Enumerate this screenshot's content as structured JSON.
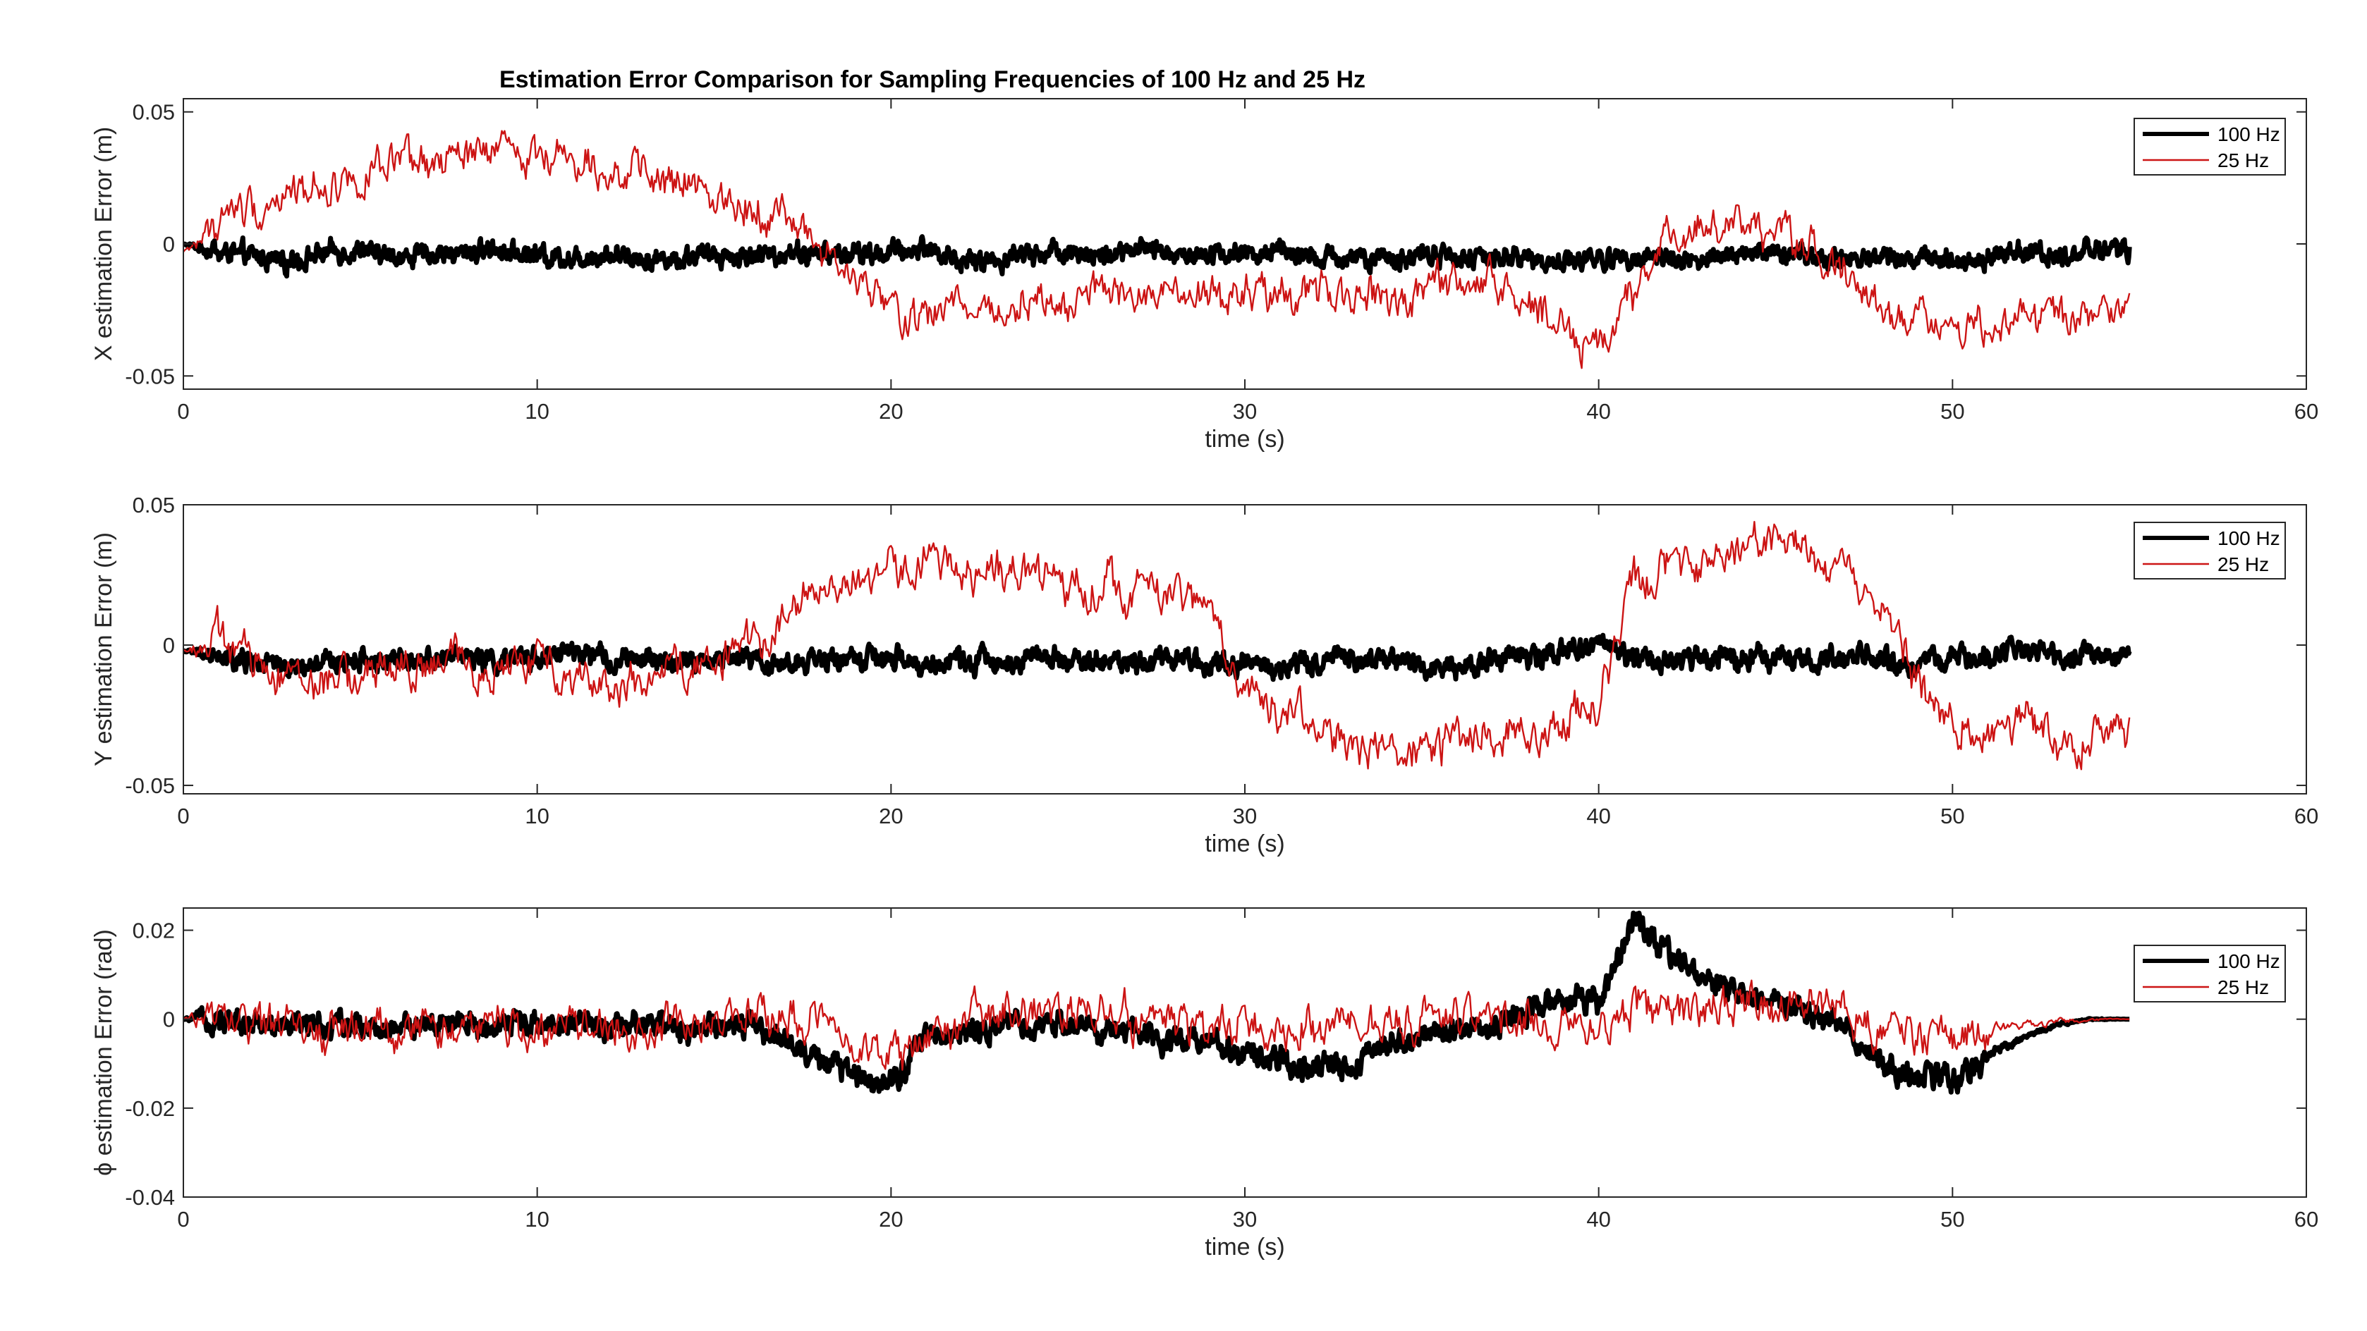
{
  "figure": {
    "title": "Estimation Error Comparison for Sampling Frequencies of 100 Hz and 25 Hz"
  },
  "colors": {
    "series_100hz": "#000000",
    "series_25hz": "#cc1414",
    "axes": "#262626",
    "background": "#ffffff"
  },
  "chart_data": [
    {
      "type": "line",
      "title": "Estimation Error Comparison for Sampling Frequencies of 100 Hz and 25 Hz",
      "xlabel": "time (s)",
      "ylabel": "X estimation Error (m)",
      "xlim": [
        0,
        60
      ],
      "ylim": [
        -0.055,
        0.055
      ],
      "xticks": [
        0,
        10,
        20,
        30,
        40,
        50,
        60
      ],
      "xtick_labels": [
        "0",
        "10",
        "20",
        "30",
        "40",
        "50",
        "60"
      ],
      "yticks": [
        -0.05,
        0,
        0.05
      ],
      "ytick_labels": [
        "-0.05",
        "0",
        "0.05"
      ],
      "grid": false,
      "legend_position": "top-right",
      "series": [
        {
          "name": "100 Hz",
          "x": [
            0,
            1,
            2,
            3,
            4,
            5,
            6,
            7,
            8,
            9,
            10,
            11,
            12,
            13,
            14,
            15,
            16,
            17,
            18,
            19,
            20,
            21,
            22,
            23,
            24,
            25,
            26,
            27,
            28,
            29,
            30,
            31,
            32,
            33,
            34,
            35,
            36,
            37,
            38,
            39,
            40,
            41,
            42,
            43,
            44,
            45,
            46,
            47,
            48,
            49,
            50,
            51,
            52,
            53,
            54,
            55
          ],
          "y": [
            0,
            -0.003,
            -0.005,
            -0.006,
            -0.004,
            -0.003,
            -0.005,
            -0.004,
            -0.003,
            -0.002,
            -0.004,
            -0.005,
            -0.004,
            -0.005,
            -0.006,
            -0.004,
            -0.005,
            -0.003,
            -0.004,
            -0.004,
            -0.003,
            -0.001,
            -0.007,
            -0.006,
            -0.003,
            -0.002,
            -0.005,
            -0.002,
            -0.004,
            -0.003,
            -0.004,
            -0.003,
            -0.006,
            -0.005,
            -0.007,
            -0.004,
            -0.005,
            -0.006,
            -0.005,
            -0.007,
            -0.006,
            -0.004,
            -0.005,
            -0.006,
            -0.004,
            -0.003,
            -0.005,
            -0.006,
            -0.004,
            -0.005,
            -0.006,
            -0.005,
            -0.003,
            -0.004,
            -0.002,
            -0.003
          ],
          "noise": 0.0045
        },
        {
          "name": "25 Hz",
          "x": [
            0,
            1,
            2,
            3,
            4,
            5,
            6,
            7,
            8,
            9,
            10,
            11,
            12,
            13,
            14,
            15,
            16,
            17,
            18,
            19,
            20,
            21,
            22,
            23,
            24,
            25,
            26,
            27,
            28,
            29,
            30,
            31,
            32,
            33,
            34,
            35,
            36,
            37,
            38,
            39,
            40,
            41,
            42,
            43,
            44,
            45,
            46,
            47,
            48,
            49,
            50,
            51,
            52,
            53,
            54,
            55
          ],
          "y": [
            -0.003,
            0.008,
            0.015,
            0.02,
            0.022,
            0.025,
            0.028,
            0.03,
            0.033,
            0.036,
            0.035,
            0.032,
            0.028,
            0.025,
            0.022,
            0.02,
            0.016,
            0.01,
            0.0,
            -0.015,
            -0.025,
            -0.028,
            -0.022,
            -0.026,
            -0.02,
            -0.024,
            -0.018,
            -0.022,
            -0.02,
            -0.024,
            -0.018,
            -0.022,
            -0.015,
            -0.02,
            -0.022,
            -0.018,
            -0.014,
            -0.015,
            -0.022,
            -0.03,
            -0.04,
            -0.02,
            0.005,
            0.008,
            0.004,
            0.006,
            0.0,
            -0.012,
            -0.025,
            -0.03,
            -0.028,
            -0.032,
            -0.026,
            -0.03,
            -0.028,
            -0.025
          ],
          "noise": 0.009
        }
      ]
    },
    {
      "type": "line",
      "xlabel": "time (s)",
      "ylabel": "Y estimation Error (m)",
      "xlim": [
        0,
        60
      ],
      "ylim": [
        -0.053,
        0.05
      ],
      "xticks": [
        0,
        10,
        20,
        30,
        40,
        50,
        60
      ],
      "xtick_labels": [
        "0",
        "10",
        "20",
        "30",
        "40",
        "50",
        "60"
      ],
      "yticks": [
        -0.05,
        0,
        0.05
      ],
      "ytick_labels": [
        "-0.05",
        "0",
        "0.05"
      ],
      "grid": false,
      "legend_position": "top-right",
      "series": [
        {
          "name": "100 Hz",
          "x": [
            0,
            1,
            2,
            3,
            4,
            5,
            6,
            7,
            8,
            9,
            10,
            11,
            12,
            13,
            14,
            15,
            16,
            17,
            18,
            19,
            20,
            21,
            22,
            23,
            24,
            25,
            26,
            27,
            28,
            29,
            30,
            31,
            32,
            33,
            34,
            35,
            36,
            37,
            38,
            39,
            40,
            41,
            42,
            43,
            44,
            45,
            46,
            47,
            48,
            49,
            50,
            51,
            52,
            53,
            54,
            55
          ],
          "y": [
            -0.002,
            -0.005,
            -0.006,
            -0.008,
            -0.007,
            -0.005,
            -0.006,
            -0.004,
            -0.004,
            -0.006,
            -0.004,
            -0.003,
            -0.005,
            -0.006,
            -0.006,
            -0.005,
            -0.004,
            -0.007,
            -0.006,
            -0.004,
            -0.005,
            -0.008,
            -0.005,
            -0.006,
            -0.004,
            -0.005,
            -0.006,
            -0.005,
            -0.004,
            -0.006,
            -0.006,
            -0.007,
            -0.006,
            -0.005,
            -0.004,
            -0.006,
            -0.008,
            -0.005,
            -0.004,
            -0.002,
            0.0,
            -0.004,
            -0.006,
            -0.005,
            -0.004,
            -0.003,
            -0.006,
            -0.005,
            -0.006,
            -0.007,
            -0.005,
            -0.004,
            -0.003,
            -0.004,
            -0.004,
            -0.003
          ],
          "noise": 0.0045
        },
        {
          "name": "25 Hz",
          "x": [
            0,
            1,
            2,
            3,
            4,
            5,
            6,
            7,
            8,
            9,
            10,
            11,
            12,
            13,
            14,
            15,
            16,
            17,
            18,
            19,
            20,
            21,
            22,
            23,
            24,
            25,
            26,
            27,
            28,
            29,
            30,
            31,
            32,
            33,
            34,
            35,
            36,
            37,
            38,
            39,
            40,
            41,
            42,
            43,
            44,
            45,
            46,
            47,
            48,
            49,
            50,
            51,
            52,
            53,
            54,
            55
          ],
          "y": [
            -0.002,
            0.002,
            -0.005,
            -0.008,
            -0.012,
            -0.01,
            -0.008,
            -0.009,
            -0.006,
            -0.01,
            -0.006,
            -0.009,
            -0.012,
            -0.014,
            -0.009,
            -0.006,
            0.0,
            0.01,
            0.02,
            0.022,
            0.028,
            0.03,
            0.028,
            0.026,
            0.024,
            0.023,
            0.022,
            0.02,
            0.018,
            0.014,
            -0.015,
            -0.022,
            -0.028,
            -0.035,
            -0.04,
            -0.038,
            -0.034,
            -0.032,
            -0.03,
            -0.026,
            -0.018,
            0.022,
            0.025,
            0.026,
            0.032,
            0.038,
            0.032,
            0.026,
            0.015,
            -0.015,
            -0.025,
            -0.035,
            -0.028,
            -0.035,
            -0.032,
            -0.028
          ],
          "noise": 0.009
        }
      ]
    },
    {
      "type": "line",
      "xlabel": "time (s)",
      "ylabel": "ϕ estimation Error (rad)",
      "xlim": [
        0,
        60
      ],
      "ylim": [
        -0.04,
        0.025
      ],
      "xticks": [
        0,
        10,
        20,
        30,
        40,
        50,
        60
      ],
      "xtick_labels": [
        "0",
        "10",
        "20",
        "30",
        "40",
        "50",
        "60"
      ],
      "yticks": [
        -0.04,
        -0.02,
        0,
        0.02
      ],
      "ytick_labels": [
        "-0.04",
        "-0.02",
        "0",
        "0.02"
      ],
      "grid": false,
      "legend_position": "top-right",
      "series": [
        {
          "name": "100 Hz",
          "x": [
            0,
            1,
            2,
            3,
            4,
            5,
            6,
            7,
            8,
            9,
            10,
            11,
            12,
            13,
            14,
            15,
            16,
            17,
            18,
            19,
            20,
            21,
            22,
            23,
            24,
            25,
            26,
            27,
            28,
            29,
            30,
            31,
            32,
            33,
            34,
            35,
            36,
            37,
            38,
            39,
            40,
            41,
            42,
            43,
            44,
            45,
            46,
            47,
            48,
            49,
            50,
            51,
            52,
            53,
            54,
            55
          ],
          "y": [
            0,
            0,
            -0.001,
            -0.001,
            -0.002,
            -0.001,
            -0.002,
            -0.001,
            -0.002,
            -0.001,
            -0.001,
            -0.001,
            -0.002,
            -0.001,
            -0.002,
            -0.001,
            -0.002,
            -0.004,
            -0.01,
            -0.012,
            -0.014,
            -0.004,
            -0.003,
            -0.002,
            -0.002,
            -0.001,
            -0.003,
            -0.003,
            -0.004,
            -0.005,
            -0.008,
            -0.01,
            -0.011,
            -0.01,
            -0.006,
            -0.004,
            -0.002,
            -0.002,
            0.002,
            0.005,
            0.004,
            0.022,
            0.015,
            0.01,
            0.006,
            0.004,
            0.001,
            -0.002,
            -0.01,
            -0.014,
            -0.013,
            -0.008,
            -0.004,
            -0.001,
            0,
            0
          ],
          "noise": 0.0032
        },
        {
          "name": "25 Hz",
          "x": [
            0,
            1,
            2,
            3,
            4,
            5,
            6,
            7,
            8,
            9,
            10,
            11,
            12,
            13,
            14,
            15,
            16,
            17,
            18,
            19,
            20,
            21,
            22,
            23,
            24,
            25,
            26,
            27,
            28,
            29,
            30,
            31,
            32,
            33,
            34,
            35,
            36,
            37,
            38,
            39,
            40,
            41,
            42,
            43,
            44,
            45,
            46,
            47,
            48,
            49,
            50,
            51,
            52,
            53,
            54,
            55
          ],
          "y": [
            0,
            0,
            -0.001,
            -0.002,
            -0.003,
            -0.002,
            -0.003,
            -0.002,
            -0.002,
            -0.001,
            -0.002,
            -0.001,
            -0.002,
            -0.002,
            -0.001,
            0,
            0.001,
            0.001,
            0,
            -0.004,
            -0.008,
            -0.006,
            -0.001,
            0.001,
            0.002,
            0.001,
            0.0,
            0.0,
            -0.001,
            -0.002,
            -0.003,
            -0.003,
            -0.003,
            -0.002,
            -0.002,
            -0.001,
            0.0,
            0.0,
            0.0,
            -0.001,
            -0.002,
            0.002,
            0.003,
            0.002,
            0.004,
            0.003,
            0.002,
            0.0,
            -0.002,
            -0.003,
            -0.004,
            -0.002,
            -0.001,
            -0.0005,
            0,
            0
          ],
          "noise": 0.0055
        }
      ]
    }
  ]
}
